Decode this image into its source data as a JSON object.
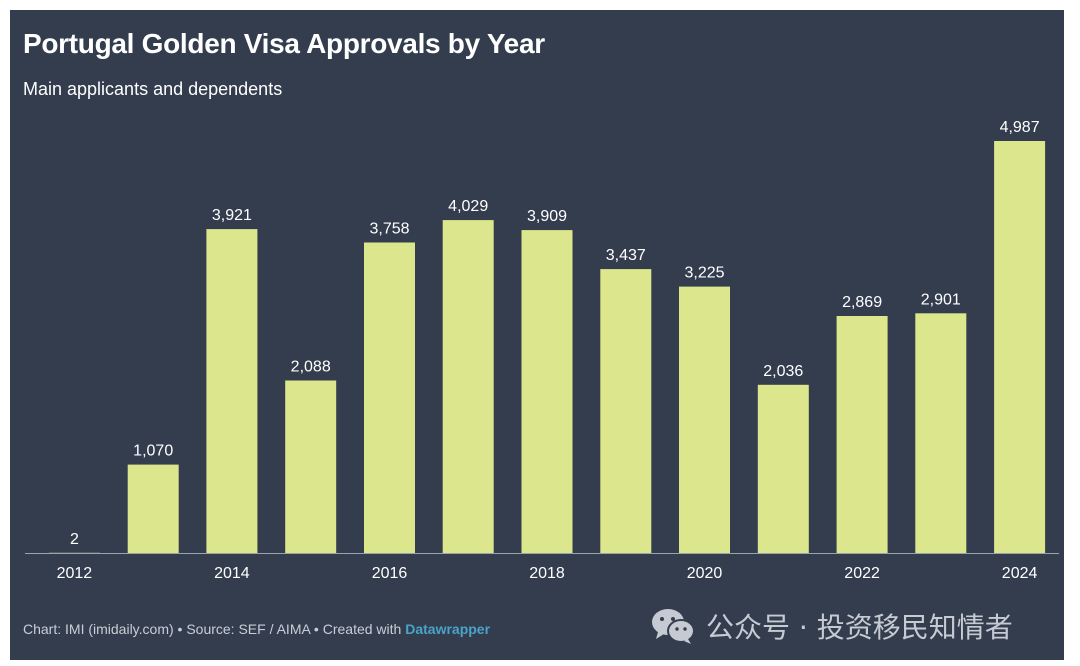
{
  "header": {
    "title": "Portugal Golden Visa Approvals by Year",
    "subtitle": "Main applicants and dependents"
  },
  "footer": {
    "text": "Chart: IMI (imidaily.com) • Source: SEF / AIMA • Created with ",
    "link": "Datawrapper"
  },
  "watermark": {
    "icon": "wechat-icon",
    "text": "公众号 · 投资移民知情者"
  },
  "colors": {
    "background": "#333d4e",
    "bar": "#dce68c",
    "text": "#ffffff",
    "axis": "#9aa3b0"
  },
  "chart_data": {
    "type": "bar",
    "categories": [
      "2012",
      "2013",
      "2014",
      "2015",
      "2016",
      "2017",
      "2018",
      "2019",
      "2020",
      "2021",
      "2022",
      "2023",
      "2024"
    ],
    "values": [
      2,
      1070,
      3921,
      2088,
      3758,
      4029,
      3909,
      3437,
      3225,
      2036,
      2869,
      2901,
      4987
    ],
    "value_labels": [
      "2",
      "1,070",
      "3,921",
      "2,088",
      "3,758",
      "4,029",
      "3,909",
      "3,437",
      "3,225",
      "2,036",
      "2,869",
      "2,901",
      "4,987"
    ],
    "x_tick_labels": [
      "2012",
      "2014",
      "2016",
      "2018",
      "2020",
      "2022",
      "2024"
    ],
    "title": "Portugal Golden Visa Approvals by Year",
    "subtitle": "Main applicants and dependents",
    "ylim": [
      0,
      4987
    ],
    "grid": false,
    "legend": "none"
  }
}
